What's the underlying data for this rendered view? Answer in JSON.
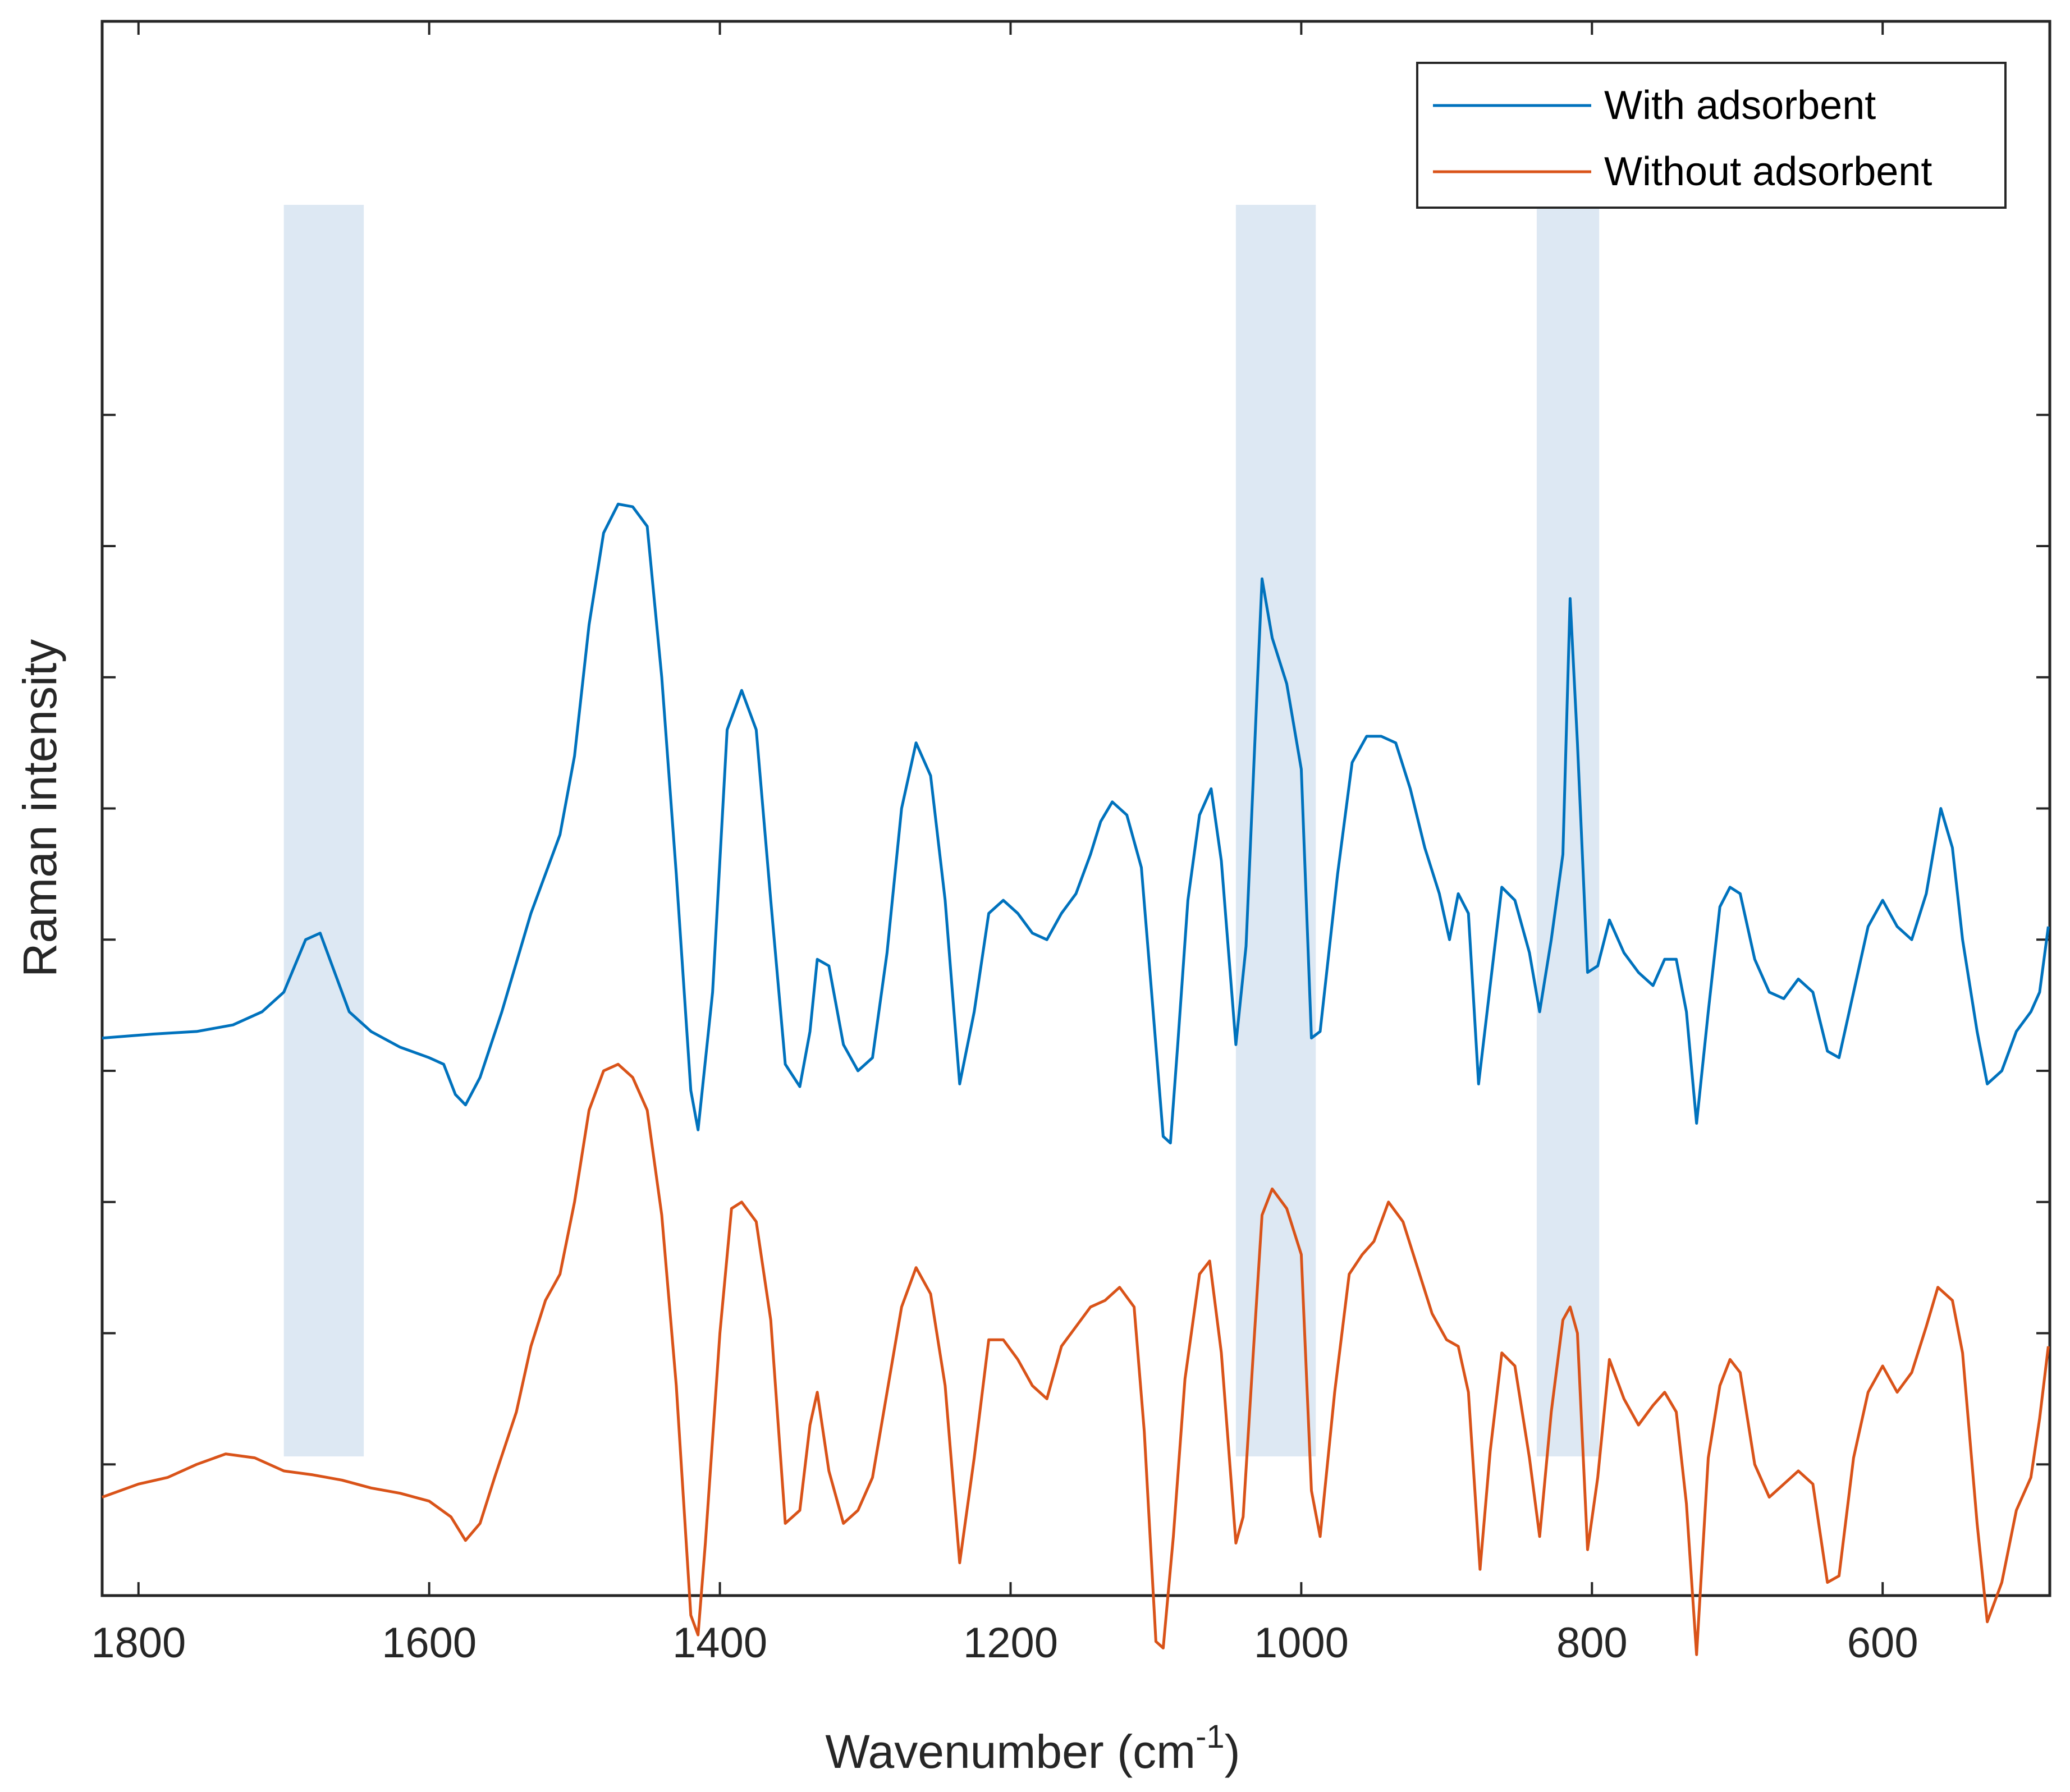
{
  "chart_data": {
    "type": "line",
    "title": "",
    "xlabel": "Wavenumber (cm",
    "xlabel_sup": "-1",
    "xlabel_close": ")",
    "ylabel": "Raman intensity",
    "xlim": [
      1825,
      485
    ],
    "x_reversed": true,
    "ylim": [
      0,
      12
    ],
    "y_ticks_labeled": false,
    "y_ticks": [
      1,
      2,
      3,
      4,
      5,
      6,
      7,
      8,
      9
    ],
    "x_ticks": [
      1800,
      1600,
      1400,
      1200,
      1000,
      800,
      600
    ],
    "x_tick_labels": [
      "1800",
      "1600",
      "1400",
      "1200",
      "1000",
      "800",
      "600"
    ],
    "legend_position": "top-right",
    "highlight_bands": [
      {
        "x_from": 1700,
        "x_to": 1645
      },
      {
        "x_from": 1045,
        "x_to": 990
      },
      {
        "x_from": 838,
        "x_to": 795
      }
    ],
    "series": [
      {
        "name": "With adsorbent",
        "color": "#0072BD",
        "points": [
          [
            1825,
            4.25
          ],
          [
            1790,
            4.28
          ],
          [
            1760,
            4.3
          ],
          [
            1735,
            4.35
          ],
          [
            1715,
            4.45
          ],
          [
            1700,
            4.6
          ],
          [
            1685,
            5.0
          ],
          [
            1675,
            5.05
          ],
          [
            1665,
            4.75
          ],
          [
            1655,
            4.45
          ],
          [
            1640,
            4.3
          ],
          [
            1620,
            4.18
          ],
          [
            1600,
            4.1
          ],
          [
            1590,
            4.05
          ],
          [
            1582,
            3.82
          ],
          [
            1575,
            3.74
          ],
          [
            1565,
            3.95
          ],
          [
            1550,
            4.45
          ],
          [
            1530,
            5.2
          ],
          [
            1510,
            5.8
          ],
          [
            1500,
            6.4
          ],
          [
            1490,
            7.4
          ],
          [
            1480,
            8.1
          ],
          [
            1470,
            8.32
          ],
          [
            1460,
            8.3
          ],
          [
            1450,
            8.15
          ],
          [
            1440,
            7.0
          ],
          [
            1430,
            5.5
          ],
          [
            1420,
            3.85
          ],
          [
            1415,
            3.55
          ],
          [
            1405,
            4.6
          ],
          [
            1395,
            6.6
          ],
          [
            1385,
            6.9
          ],
          [
            1375,
            6.6
          ],
          [
            1365,
            5.3
          ],
          [
            1355,
            4.05
          ],
          [
            1345,
            3.88
          ],
          [
            1338,
            4.3
          ],
          [
            1333,
            4.85
          ],
          [
            1325,
            4.8
          ],
          [
            1315,
            4.2
          ],
          [
            1305,
            4.0
          ],
          [
            1295,
            4.1
          ],
          [
            1285,
            4.9
          ],
          [
            1275,
            6.0
          ],
          [
            1265,
            6.5
          ],
          [
            1255,
            6.25
          ],
          [
            1245,
            5.3
          ],
          [
            1235,
            3.9
          ],
          [
            1225,
            4.45
          ],
          [
            1215,
            5.2
          ],
          [
            1205,
            5.3
          ],
          [
            1195,
            5.2
          ],
          [
            1185,
            5.05
          ],
          [
            1175,
            5.0
          ],
          [
            1165,
            5.2
          ],
          [
            1155,
            5.35
          ],
          [
            1145,
            5.65
          ],
          [
            1138,
            5.9
          ],
          [
            1130,
            6.05
          ],
          [
            1120,
            5.95
          ],
          [
            1110,
            5.55
          ],
          [
            1103,
            4.6
          ],
          [
            1095,
            3.5
          ],
          [
            1090,
            3.45
          ],
          [
            1085,
            4.2
          ],
          [
            1078,
            5.3
          ],
          [
            1070,
            5.95
          ],
          [
            1062,
            6.15
          ],
          [
            1055,
            5.6
          ],
          [
            1045,
            4.2
          ],
          [
            1038,
            4.95
          ],
          [
            1030,
            7.0
          ],
          [
            1027,
            7.75
          ],
          [
            1020,
            7.3
          ],
          [
            1010,
            6.95
          ],
          [
            1000,
            6.3
          ],
          [
            993,
            4.25
          ],
          [
            987,
            4.3
          ],
          [
            975,
            5.5
          ],
          [
            965,
            6.35
          ],
          [
            955,
            6.55
          ],
          [
            945,
            6.55
          ],
          [
            935,
            6.5
          ],
          [
            925,
            6.15
          ],
          [
            915,
            5.7
          ],
          [
            905,
            5.35
          ],
          [
            898,
            5.0
          ],
          [
            892,
            5.35
          ],
          [
            885,
            5.2
          ],
          [
            878,
            3.9
          ],
          [
            870,
            4.65
          ],
          [
            862,
            5.4
          ],
          [
            853,
            5.3
          ],
          [
            843,
            4.9
          ],
          [
            836,
            4.45
          ],
          [
            828,
            5.0
          ],
          [
            820,
            5.65
          ],
          [
            815,
            7.6
          ],
          [
            810,
            6.5
          ],
          [
            803,
            4.75
          ],
          [
            796,
            4.8
          ],
          [
            788,
            5.15
          ],
          [
            778,
            4.9
          ],
          [
            768,
            4.75
          ],
          [
            758,
            4.65
          ],
          [
            750,
            4.85
          ],
          [
            742,
            4.85
          ],
          [
            735,
            4.45
          ],
          [
            728,
            3.6
          ],
          [
            720,
            4.45
          ],
          [
            712,
            5.25
          ],
          [
            705,
            5.4
          ],
          [
            698,
            5.35
          ],
          [
            688,
            4.85
          ],
          [
            678,
            4.6
          ],
          [
            668,
            4.55
          ],
          [
            658,
            4.7
          ],
          [
            648,
            4.6
          ],
          [
            638,
            4.15
          ],
          [
            630,
            4.1
          ],
          [
            620,
            4.6
          ],
          [
            610,
            5.1
          ],
          [
            600,
            5.3
          ],
          [
            590,
            5.1
          ],
          [
            580,
            5.0
          ],
          [
            570,
            5.35
          ],
          [
            560,
            6.0
          ],
          [
            552,
            5.7
          ],
          [
            545,
            5.0
          ],
          [
            535,
            4.3
          ],
          [
            528,
            3.9
          ],
          [
            518,
            4.0
          ],
          [
            508,
            4.3
          ],
          [
            498,
            4.45
          ],
          [
            492,
            4.6
          ],
          [
            486,
            5.1
          ]
        ]
      },
      {
        "name": "Without adsorbent",
        "color": "#D95319",
        "points": [
          [
            1825,
            0.75
          ],
          [
            1800,
            0.85
          ],
          [
            1780,
            0.9
          ],
          [
            1760,
            1.0
          ],
          [
            1740,
            1.08
          ],
          [
            1720,
            1.05
          ],
          [
            1700,
            0.95
          ],
          [
            1680,
            0.92
          ],
          [
            1660,
            0.88
          ],
          [
            1640,
            0.82
          ],
          [
            1620,
            0.78
          ],
          [
            1600,
            0.72
          ],
          [
            1585,
            0.6
          ],
          [
            1575,
            0.42
          ],
          [
            1565,
            0.55
          ],
          [
            1555,
            0.9
          ],
          [
            1540,
            1.4
          ],
          [
            1530,
            1.9
          ],
          [
            1520,
            2.25
          ],
          [
            1510,
            2.45
          ],
          [
            1500,
            3.0
          ],
          [
            1490,
            3.7
          ],
          [
            1480,
            4.0
          ],
          [
            1470,
            4.05
          ],
          [
            1460,
            3.95
          ],
          [
            1450,
            3.7
          ],
          [
            1440,
            2.9
          ],
          [
            1430,
            1.6
          ],
          [
            1420,
            -0.15
          ],
          [
            1415,
            -0.3
          ],
          [
            1410,
            0.4
          ],
          [
            1400,
            2.0
          ],
          [
            1392,
            2.95
          ],
          [
            1385,
            3.0
          ],
          [
            1375,
            2.85
          ],
          [
            1365,
            2.1
          ],
          [
            1355,
            0.55
          ],
          [
            1345,
            0.65
          ],
          [
            1338,
            1.3
          ],
          [
            1333,
            1.55
          ],
          [
            1325,
            0.95
          ],
          [
            1315,
            0.55
          ],
          [
            1305,
            0.65
          ],
          [
            1295,
            0.9
          ],
          [
            1285,
            1.55
          ],
          [
            1275,
            2.2
          ],
          [
            1265,
            2.5
          ],
          [
            1255,
            2.3
          ],
          [
            1245,
            1.6
          ],
          [
            1235,
            0.25
          ],
          [
            1225,
            1.05
          ],
          [
            1215,
            1.95
          ],
          [
            1205,
            1.95
          ],
          [
            1195,
            1.8
          ],
          [
            1185,
            1.6
          ],
          [
            1175,
            1.5
          ],
          [
            1165,
            1.9
          ],
          [
            1155,
            2.05
          ],
          [
            1145,
            2.2
          ],
          [
            1135,
            2.25
          ],
          [
            1125,
            2.35
          ],
          [
            1115,
            2.2
          ],
          [
            1108,
            1.25
          ],
          [
            1100,
            -0.35
          ],
          [
            1095,
            -0.4
          ],
          [
            1088,
            0.45
          ],
          [
            1080,
            1.65
          ],
          [
            1070,
            2.45
          ],
          [
            1063,
            2.55
          ],
          [
            1055,
            1.85
          ],
          [
            1045,
            0.4
          ],
          [
            1040,
            0.6
          ],
          [
            1033,
            1.85
          ],
          [
            1027,
            2.9
          ],
          [
            1020,
            3.1
          ],
          [
            1010,
            2.95
          ],
          [
            1000,
            2.6
          ],
          [
            993,
            0.8
          ],
          [
            987,
            0.45
          ],
          [
            977,
            1.55
          ],
          [
            967,
            2.45
          ],
          [
            958,
            2.6
          ],
          [
            950,
            2.7
          ],
          [
            940,
            3.0
          ],
          [
            930,
            2.85
          ],
          [
            920,
            2.5
          ],
          [
            910,
            2.15
          ],
          [
            900,
            1.95
          ],
          [
            892,
            1.9
          ],
          [
            885,
            1.55
          ],
          [
            877,
            0.2
          ],
          [
            870,
            1.1
          ],
          [
            862,
            1.85
          ],
          [
            853,
            1.75
          ],
          [
            843,
            1.05
          ],
          [
            836,
            0.45
          ],
          [
            828,
            1.4
          ],
          [
            820,
            2.1
          ],
          [
            815,
            2.2
          ],
          [
            810,
            2.0
          ],
          [
            803,
            0.35
          ],
          [
            796,
            0.9
          ],
          [
            788,
            1.8
          ],
          [
            778,
            1.5
          ],
          [
            768,
            1.3
          ],
          [
            758,
            1.45
          ],
          [
            750,
            1.55
          ],
          [
            742,
            1.4
          ],
          [
            735,
            0.7
          ],
          [
            728,
            -0.45
          ],
          [
            720,
            1.05
          ],
          [
            712,
            1.6
          ],
          [
            705,
            1.8
          ],
          [
            698,
            1.7
          ],
          [
            688,
            1.0
          ],
          [
            678,
            0.75
          ],
          [
            668,
            0.85
          ],
          [
            658,
            0.95
          ],
          [
            648,
            0.85
          ],
          [
            638,
            0.1
          ],
          [
            630,
            0.15
          ],
          [
            620,
            1.05
          ],
          [
            610,
            1.55
          ],
          [
            600,
            1.75
          ],
          [
            590,
            1.55
          ],
          [
            580,
            1.7
          ],
          [
            570,
            2.05
          ],
          [
            562,
            2.35
          ],
          [
            552,
            2.25
          ],
          [
            545,
            1.85
          ],
          [
            535,
            0.55
          ],
          [
            528,
            -0.2
          ],
          [
            518,
            0.1
          ],
          [
            508,
            0.65
          ],
          [
            498,
            0.9
          ],
          [
            492,
            1.35
          ],
          [
            486,
            1.9
          ]
        ]
      }
    ]
  }
}
